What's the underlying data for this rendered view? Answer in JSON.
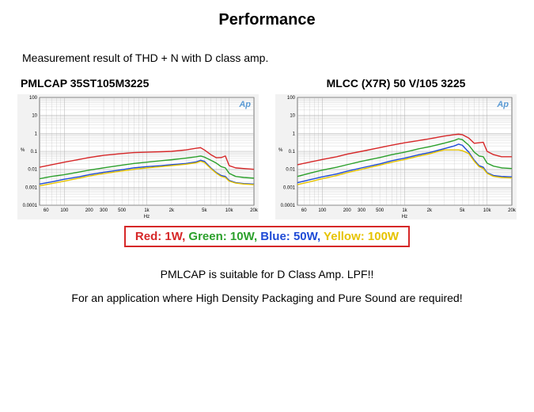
{
  "title": "Performance",
  "measurement": "Measurement result of THD + N with D class amp.",
  "charts": [
    {
      "title": "PMLCAP 35ST105M3225",
      "type": "line-logxy",
      "xlabel": "Hz",
      "ylabel": "%",
      "xmin": 50,
      "xmax": 20000,
      "ymin": 0.0001,
      "ymax": 100,
      "xtick_labels": [
        "60",
        "100",
        "200",
        "300",
        "500",
        "1k",
        "2k",
        "5k",
        "10k",
        "20k"
      ],
      "xtick_vals": [
        60,
        100,
        200,
        300,
        500,
        1000,
        2000,
        5000,
        10000,
        20000
      ],
      "ytick_labels": [
        "0.0001",
        "0.001",
        "0.01",
        "0.1",
        "1",
        "10",
        "100"
      ],
      "ytick_vals": [
        0.0001,
        0.001,
        0.01,
        0.1,
        1,
        10,
        100
      ],
      "grid_color": "#b0b0b0",
      "plot_bg": "#ffffff",
      "chart_bg": "#f2f2f2",
      "logo_text": "Ap",
      "logo_color": "#5a9ad4",
      "label_fontsize": 6,
      "series": [
        {
          "name": "1W",
          "color": "#d62728",
          "data": [
            [
              50,
              0.013
            ],
            [
              70,
              0.018
            ],
            [
              100,
              0.025
            ],
            [
              150,
              0.035
            ],
            [
              200,
              0.045
            ],
            [
              300,
              0.06
            ],
            [
              500,
              0.075
            ],
            [
              700,
              0.085
            ],
            [
              1000,
              0.09
            ],
            [
              1500,
              0.095
            ],
            [
              2000,
              0.1
            ],
            [
              3000,
              0.12
            ],
            [
              4000,
              0.15
            ],
            [
              4500,
              0.16
            ],
            [
              5000,
              0.12
            ],
            [
              6000,
              0.065
            ],
            [
              7000,
              0.044
            ],
            [
              8000,
              0.045
            ],
            [
              9000,
              0.055
            ],
            [
              10000,
              0.016
            ],
            [
              12000,
              0.012
            ],
            [
              15000,
              0.011
            ],
            [
              20000,
              0.01
            ]
          ]
        },
        {
          "name": "10W",
          "color": "#2ca02c",
          "data": [
            [
              50,
              0.003
            ],
            [
              70,
              0.004
            ],
            [
              100,
              0.005
            ],
            [
              150,
              0.007
            ],
            [
              200,
              0.009
            ],
            [
              300,
              0.012
            ],
            [
              500,
              0.017
            ],
            [
              700,
              0.021
            ],
            [
              1000,
              0.025
            ],
            [
              1500,
              0.03
            ],
            [
              2000,
              0.034
            ],
            [
              3000,
              0.042
            ],
            [
              4000,
              0.05
            ],
            [
              4500,
              0.055
            ],
            [
              5000,
              0.048
            ],
            [
              6000,
              0.032
            ],
            [
              7000,
              0.022
            ],
            [
              8000,
              0.014
            ],
            [
              9000,
              0.012
            ],
            [
              10000,
              0.006
            ],
            [
              12000,
              0.004
            ],
            [
              15000,
              0.0035
            ],
            [
              20000,
              0.0032
            ]
          ]
        },
        {
          "name": "50W",
          "color": "#1f4bd6",
          "data": [
            [
              50,
              0.0015
            ],
            [
              70,
              0.002
            ],
            [
              100,
              0.0028
            ],
            [
              150,
              0.0038
            ],
            [
              200,
              0.005
            ],
            [
              300,
              0.0068
            ],
            [
              500,
              0.0095
            ],
            [
              700,
              0.012
            ],
            [
              1000,
              0.014
            ],
            [
              1500,
              0.016
            ],
            [
              2000,
              0.018
            ],
            [
              3000,
              0.021
            ],
            [
              4000,
              0.026
            ],
            [
              4500,
              0.032
            ],
            [
              5000,
              0.028
            ],
            [
              6000,
              0.012
            ],
            [
              7000,
              0.0065
            ],
            [
              8000,
              0.0045
            ],
            [
              9000,
              0.004
            ],
            [
              10000,
              0.0024
            ],
            [
              12000,
              0.0018
            ],
            [
              15000,
              0.0016
            ],
            [
              20000,
              0.0015
            ]
          ]
        },
        {
          "name": "100W",
          "color": "#e6c300",
          "data": [
            [
              50,
              0.0012
            ],
            [
              70,
              0.0016
            ],
            [
              100,
              0.0022
            ],
            [
              150,
              0.0032
            ],
            [
              200,
              0.0042
            ],
            [
              300,
              0.0058
            ],
            [
              500,
              0.008
            ],
            [
              700,
              0.01
            ],
            [
              1000,
              0.012
            ],
            [
              1500,
              0.014
            ],
            [
              2000,
              0.016
            ],
            [
              3000,
              0.019
            ],
            [
              4000,
              0.023
            ],
            [
              4500,
              0.028
            ],
            [
              5000,
              0.024
            ],
            [
              6000,
              0.011
            ],
            [
              7000,
              0.006
            ],
            [
              8000,
              0.004
            ],
            [
              9000,
              0.0035
            ],
            [
              10000,
              0.0022
            ],
            [
              12000,
              0.0017
            ],
            [
              15000,
              0.0015
            ],
            [
              20000,
              0.0014
            ]
          ]
        }
      ]
    },
    {
      "title": "MLCC (X7R) 50 V/105 3225",
      "type": "line-logxy",
      "xlabel": "Hz",
      "ylabel": "%",
      "xmin": 50,
      "xmax": 20000,
      "ymin": 0.0001,
      "ymax": 100,
      "xtick_labels": [
        "60",
        "100",
        "200",
        "300",
        "500",
        "1k",
        "2k",
        "5k",
        "10k",
        "20k"
      ],
      "xtick_vals": [
        60,
        100,
        200,
        300,
        500,
        1000,
        2000,
        5000,
        10000,
        20000
      ],
      "ytick_labels": [
        "0.0001",
        "0.001",
        "0.01",
        "0.1",
        "1",
        "10",
        "100"
      ],
      "ytick_vals": [
        0.0001,
        0.001,
        0.01,
        0.1,
        1,
        10,
        100
      ],
      "grid_color": "#b0b0b0",
      "plot_bg": "#ffffff",
      "chart_bg": "#f2f2f2",
      "logo_text": "Ap",
      "logo_color": "#5a9ad4",
      "label_fontsize": 6,
      "series": [
        {
          "name": "1W",
          "color": "#d62728",
          "data": [
            [
              50,
              0.018
            ],
            [
              70,
              0.025
            ],
            [
              100,
              0.035
            ],
            [
              150,
              0.05
            ],
            [
              200,
              0.07
            ],
            [
              300,
              0.1
            ],
            [
              500,
              0.16
            ],
            [
              700,
              0.22
            ],
            [
              1000,
              0.3
            ],
            [
              1500,
              0.4
            ],
            [
              2000,
              0.5
            ],
            [
              3000,
              0.7
            ],
            [
              4000,
              0.85
            ],
            [
              4500,
              0.9
            ],
            [
              5000,
              0.85
            ],
            [
              6000,
              0.55
            ],
            [
              7000,
              0.28
            ],
            [
              8000,
              0.3
            ],
            [
              9000,
              0.32
            ],
            [
              10000,
              0.1
            ],
            [
              12000,
              0.065
            ],
            [
              15000,
              0.05
            ],
            [
              20000,
              0.05
            ]
          ]
        },
        {
          "name": "10W",
          "color": "#2ca02c",
          "data": [
            [
              50,
              0.004
            ],
            [
              70,
              0.006
            ],
            [
              100,
              0.009
            ],
            [
              150,
              0.013
            ],
            [
              200,
              0.018
            ],
            [
              300,
              0.028
            ],
            [
              500,
              0.045
            ],
            [
              700,
              0.065
            ],
            [
              1000,
              0.09
            ],
            [
              1500,
              0.14
            ],
            [
              2000,
              0.18
            ],
            [
              3000,
              0.28
            ],
            [
              4000,
              0.4
            ],
            [
              4500,
              0.5
            ],
            [
              5000,
              0.45
            ],
            [
              6000,
              0.22
            ],
            [
              7000,
              0.09
            ],
            [
              8000,
              0.055
            ],
            [
              9000,
              0.05
            ],
            [
              10000,
              0.022
            ],
            [
              12000,
              0.015
            ],
            [
              15000,
              0.012
            ],
            [
              20000,
              0.011
            ]
          ]
        },
        {
          "name": "50W",
          "color": "#1f4bd6",
          "data": [
            [
              50,
              0.0018
            ],
            [
              70,
              0.0026
            ],
            [
              100,
              0.0038
            ],
            [
              150,
              0.0055
            ],
            [
              200,
              0.0078
            ],
            [
              300,
              0.012
            ],
            [
              500,
              0.02
            ],
            [
              700,
              0.03
            ],
            [
              1000,
              0.042
            ],
            [
              1500,
              0.065
            ],
            [
              2000,
              0.085
            ],
            [
              3000,
              0.14
            ],
            [
              4000,
              0.2
            ],
            [
              4500,
              0.25
            ],
            [
              5000,
              0.22
            ],
            [
              6000,
              0.09
            ],
            [
              7000,
              0.032
            ],
            [
              8000,
              0.016
            ],
            [
              9000,
              0.013
            ],
            [
              10000,
              0.0065
            ],
            [
              12000,
              0.0045
            ],
            [
              15000,
              0.004
            ],
            [
              20000,
              0.0038
            ]
          ]
        },
        {
          "name": "100W",
          "color": "#e6c300",
          "data": [
            [
              50,
              0.0014
            ],
            [
              70,
              0.002
            ],
            [
              100,
              0.003
            ],
            [
              150,
              0.0045
            ],
            [
              200,
              0.0065
            ],
            [
              300,
              0.01
            ],
            [
              500,
              0.017
            ],
            [
              700,
              0.025
            ],
            [
              1000,
              0.035
            ],
            [
              1500,
              0.055
            ],
            [
              2000,
              0.072
            ],
            [
              3000,
              0.12
            ],
            [
              4000,
              0.12
            ],
            [
              4500,
              0.12
            ],
            [
              5000,
              0.11
            ],
            [
              6000,
              0.075
            ],
            [
              7000,
              0.028
            ],
            [
              8000,
              0.014
            ],
            [
              9000,
              0.011
            ],
            [
              10000,
              0.006
            ],
            [
              12000,
              0.004
            ],
            [
              15000,
              0.0035
            ],
            [
              20000,
              0.0033
            ]
          ]
        }
      ]
    }
  ],
  "legend": {
    "border_color": "#d62728",
    "items": [
      {
        "label": "Red: 1W, ",
        "color": "#d62728"
      },
      {
        "label": "Green: 10W, ",
        "color": "#2ca02c"
      },
      {
        "label": "Blue: 50W, ",
        "color": "#1f4bd6"
      },
      {
        "label": "Yellow: 100W",
        "color": "#e6c300"
      }
    ]
  },
  "footer": {
    "line1": "PMLCAP is suitable for D Class Amp. LPF!!",
    "line2": "For an application where High Density Packaging and Pure Sound are required!"
  }
}
